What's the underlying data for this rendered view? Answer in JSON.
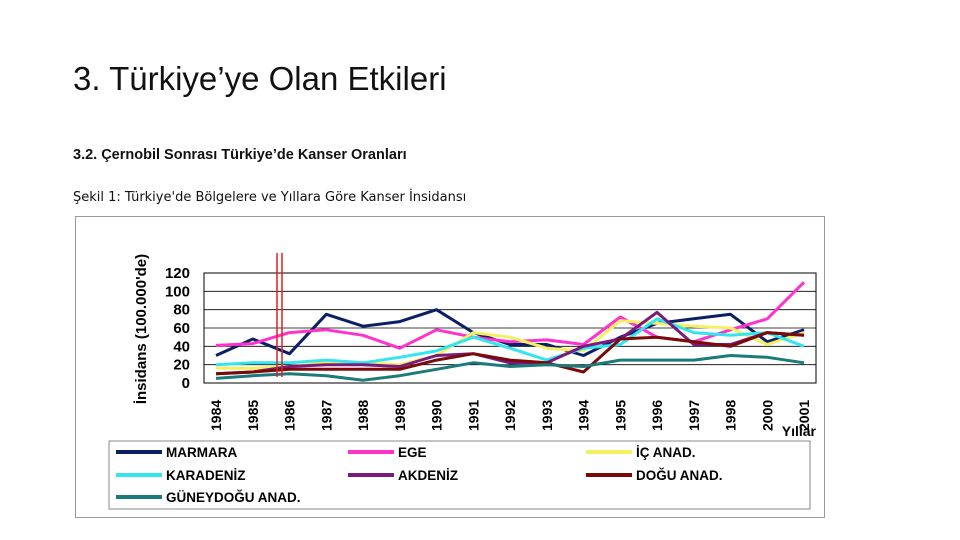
{
  "slide": {
    "title": "3. Türkiye’ye Olan Etkileri",
    "subtitle": "3.2. Çernobil Sonrası Türkiye’de Kanser Oranları",
    "caption": "Şekil 1: Türkiye'de Bölgelere ve Yıllara Göre Kanser İnsidansı"
  },
  "chart_data": {
    "type": "line",
    "title": "",
    "ylabel": "İnsidans (100.000'de)",
    "xlabel": "Yıllar",
    "ylim": [
      0,
      120
    ],
    "yticks": [
      0,
      20,
      40,
      60,
      80,
      100,
      120
    ],
    "grid": true,
    "legend_position": "bottom",
    "categories": [
      "1984",
      "1985",
      "1986",
      "1987",
      "1988",
      "1989",
      "1990",
      "1991",
      "1992",
      "1993",
      "1994",
      "1995",
      "1996",
      "1997",
      "1998",
      "2000",
      "2001"
    ],
    "series": [
      {
        "name": "MARMARA",
        "color": "#0b1f66",
        "values": [
          30,
          48,
          32,
          75,
          62,
          67,
          80,
          55,
          42,
          42,
          30,
          50,
          65,
          70,
          75,
          45,
          58
        ]
      },
      {
        "name": "EGE",
        "color": "#ff33cc",
        "values": [
          41,
          43,
          55,
          58,
          52,
          38,
          58,
          50,
          45,
          47,
          42,
          72,
          50,
          45,
          58,
          70,
          110
        ]
      },
      {
        "name": "İÇ ANAD.",
        "color": "#f5f062",
        "values": [
          16,
          16,
          18,
          22,
          22,
          20,
          30,
          55,
          50,
          38,
          35,
          68,
          65,
          62,
          60,
          42,
          55
        ]
      },
      {
        "name": "KARADENİZ",
        "color": "#33e6ee",
        "values": [
          20,
          22,
          22,
          25,
          22,
          28,
          35,
          50,
          38,
          25,
          38,
          42,
          70,
          55,
          52,
          55,
          40
        ]
      },
      {
        "name": "AKDENİZ",
        "color": "#7a1a7e",
        "values": [
          10,
          12,
          18,
          20,
          20,
          18,
          30,
          32,
          22,
          22,
          40,
          48,
          77,
          42,
          42,
          55,
          52
        ]
      },
      {
        "name": "DOĞU ANAD.",
        "color": "#7a0a0a",
        "values": [
          10,
          12,
          15,
          15,
          15,
          15,
          25,
          32,
          25,
          22,
          12,
          48,
          50,
          45,
          40,
          55,
          52
        ]
      },
      {
        "name": "GÜNEYDOĞU ANAD.",
        "color": "#1b7a7a",
        "values": [
          5,
          8,
          10,
          8,
          3,
          8,
          15,
          22,
          18,
          20,
          18,
          25,
          25,
          25,
          30,
          28,
          22
        ]
      }
    ]
  }
}
